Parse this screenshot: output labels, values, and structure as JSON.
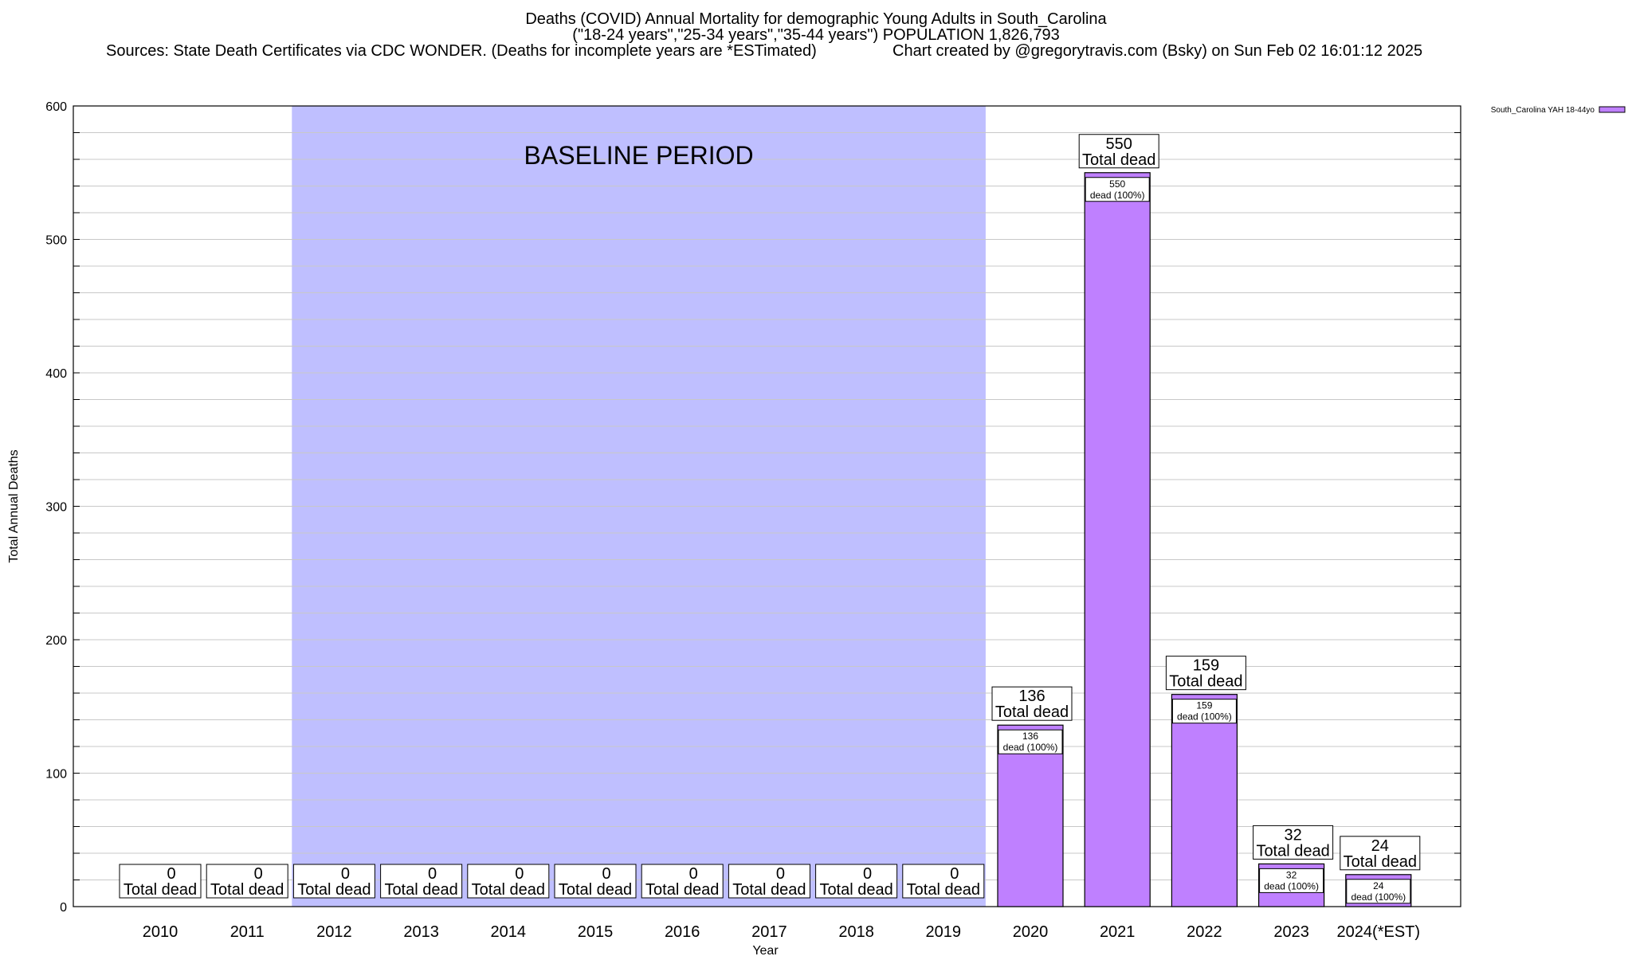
{
  "header": {
    "title_line1": "Deaths (COVID) Annual Mortality for demographic Young Adults in South_Carolina",
    "title_line2": "(\"18-24 years\",\"25-34 years\",\"35-44 years\") POPULATION 1,826,793",
    "sources": "Sources: State Death Certificates via CDC WONDER. (Deaths for incomplete years are *ESTimated)",
    "credit": "Chart created by @gregorytravis.com (Bsky) on Sun Feb 02 16:01:12 2025"
  },
  "chart_data": {
    "type": "bar",
    "title": "Deaths (COVID) Annual Mortality for demographic Young Adults in South_Carolina",
    "xlabel": "Year",
    "ylabel": "Total Annual Deaths",
    "ylim": [
      0,
      600
    ],
    "yticks": [
      0,
      100,
      200,
      300,
      400,
      500,
      600
    ],
    "grid": true,
    "legend_position": "top-right",
    "baseline_label": "BASELINE PERIOD",
    "baseline_range": [
      "2012",
      "2019"
    ],
    "categories": [
      "2010",
      "2011",
      "2012",
      "2013",
      "2014",
      "2015",
      "2016",
      "2017",
      "2018",
      "2019",
      "2020",
      "2021",
      "2022",
      "2023",
      "2024(*EST)"
    ],
    "series": [
      {
        "name": "South_Carolina YAH 18-44yo",
        "color": "#bf80ff",
        "values": [
          0,
          0,
          0,
          0,
          0,
          0,
          0,
          0,
          0,
          0,
          136,
          550,
          159,
          32,
          24
        ]
      }
    ],
    "total_label_suffix": "Total dead",
    "inner_label_suffix": "dead (100%)",
    "colors": {
      "bar": "#bf80ff",
      "baseline": "#bfbfff",
      "grid": "#c8c8c8"
    }
  }
}
